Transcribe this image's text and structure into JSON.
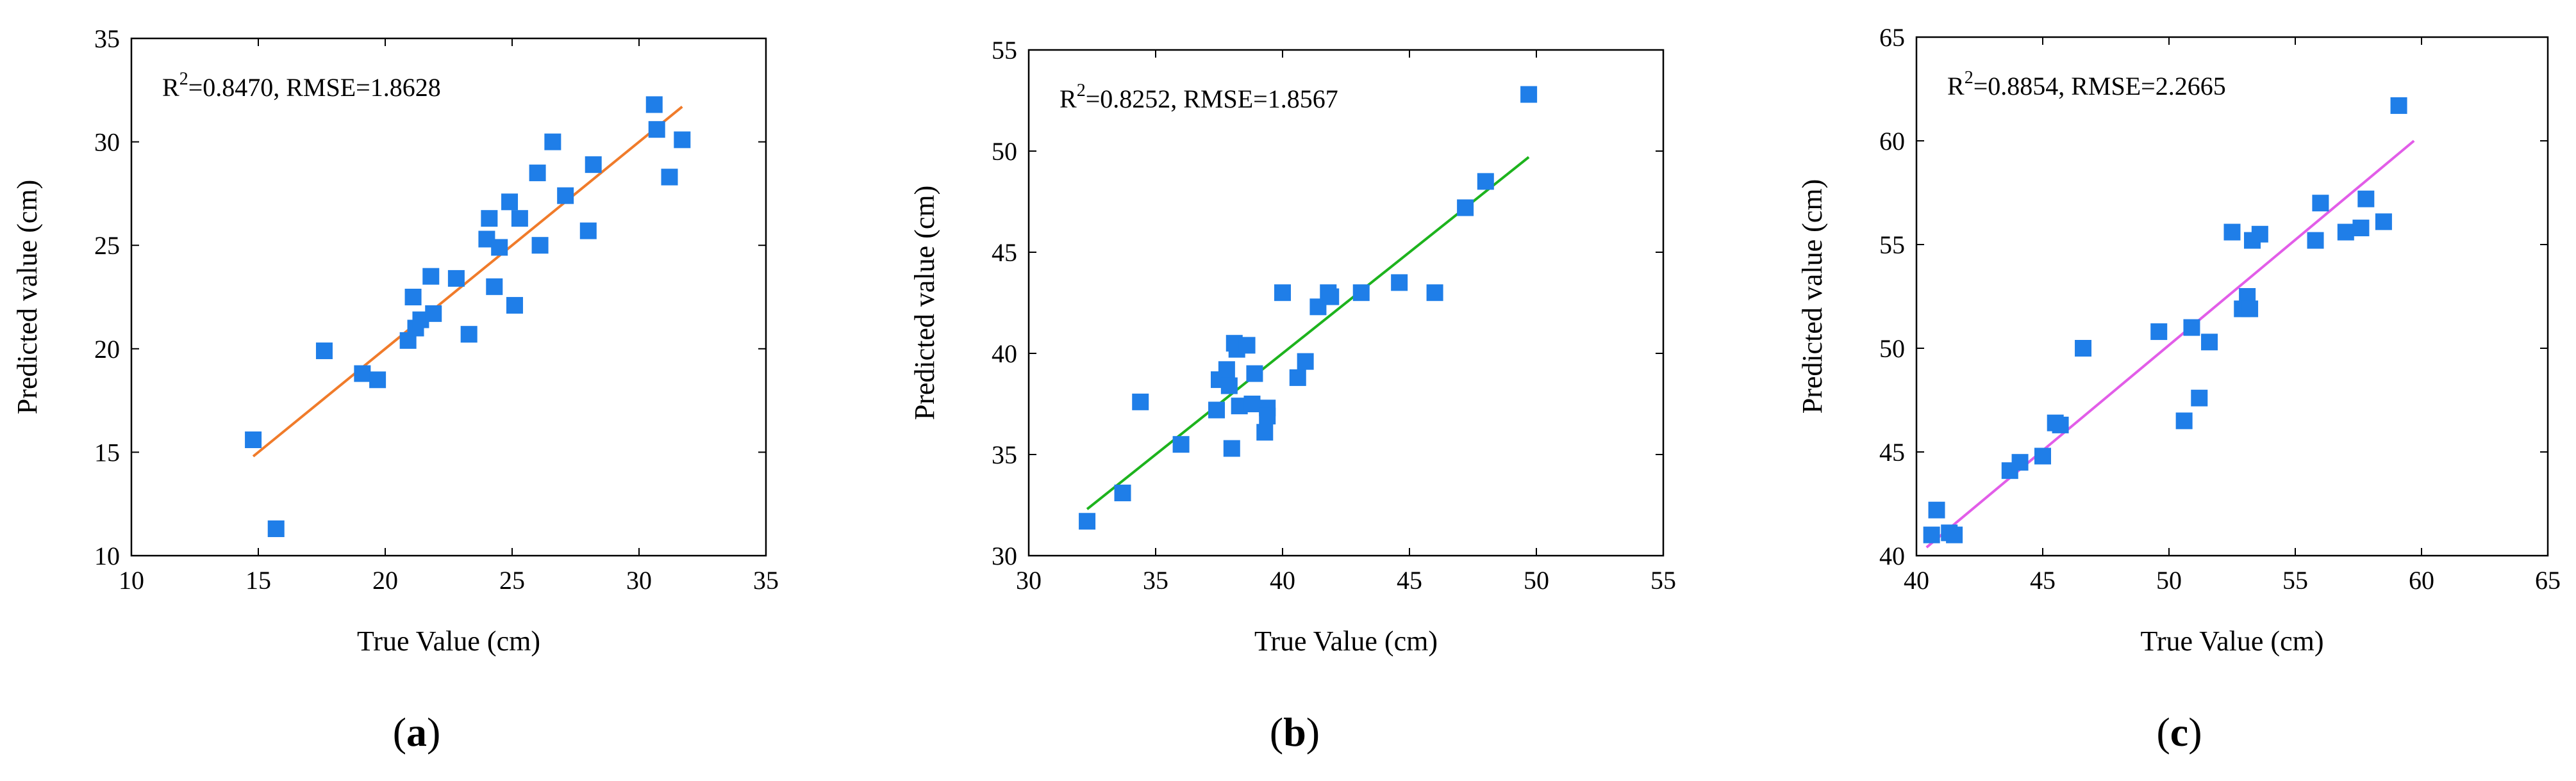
{
  "chart_data": [
    {
      "type": "scatter",
      "panel_label": {
        "open": "(",
        "letter": "a",
        "close": ")"
      },
      "xlabel": "True Value (cm)",
      "ylabel": "Predicted value (cm)",
      "xlim": [
        10,
        35
      ],
      "ylim": [
        10,
        35
      ],
      "xticks": [
        "10",
        "15",
        "20",
        "25",
        "30",
        "35"
      ],
      "yticks": [
        "10",
        "15",
        "20",
        "25",
        "30",
        "35"
      ],
      "xtick_values": [
        10,
        15,
        20,
        25,
        30,
        35
      ],
      "ytick_values": [
        10,
        15,
        20,
        25,
        30,
        35
      ],
      "annotation": {
        "r_prefix": "R",
        "r_sup": "2",
        "text": "=0.8470, RMSE=1.8628"
      },
      "marker_color": "#1f7ee8",
      "fit_color": "#f07b2a",
      "fit_line": {
        "x": [
          14.8,
          31.7
        ],
        "y": [
          14.8,
          31.7
        ]
      },
      "points": [
        {
          "x": 14.8,
          "y": 15.6
        },
        {
          "x": 15.7,
          "y": 11.3
        },
        {
          "x": 17.6,
          "y": 19.9
        },
        {
          "x": 19.1,
          "y": 18.8
        },
        {
          "x": 19.7,
          "y": 18.5
        },
        {
          "x": 20.9,
          "y": 20.4
        },
        {
          "x": 21.1,
          "y": 22.5
        },
        {
          "x": 21.2,
          "y": 21.0
        },
        {
          "x": 21.4,
          "y": 21.4
        },
        {
          "x": 21.8,
          "y": 23.5
        },
        {
          "x": 21.9,
          "y": 21.7
        },
        {
          "x": 22.8,
          "y": 23.4
        },
        {
          "x": 23.3,
          "y": 20.7
        },
        {
          "x": 24.0,
          "y": 25.3
        },
        {
          "x": 24.1,
          "y": 26.3
        },
        {
          "x": 24.3,
          "y": 23.0
        },
        {
          "x": 24.5,
          "y": 24.9
        },
        {
          "x": 24.9,
          "y": 27.1
        },
        {
          "x": 25.1,
          "y": 22.1
        },
        {
          "x": 25.3,
          "y": 26.3
        },
        {
          "x": 26.0,
          "y": 28.5
        },
        {
          "x": 26.1,
          "y": 25.0
        },
        {
          "x": 26.6,
          "y": 30.0
        },
        {
          "x": 27.1,
          "y": 27.4
        },
        {
          "x": 28.0,
          "y": 25.7
        },
        {
          "x": 28.2,
          "y": 28.9
        },
        {
          "x": 30.6,
          "y": 31.8
        },
        {
          "x": 30.7,
          "y": 30.6
        },
        {
          "x": 31.2,
          "y": 28.3
        },
        {
          "x": 31.7,
          "y": 30.1
        }
      ]
    },
    {
      "type": "scatter",
      "panel_label": {
        "open": "(",
        "letter": "b",
        "close": ")"
      },
      "xlabel": "True Value (cm)",
      "ylabel": "Predicted value (cm)",
      "xlim": [
        30,
        55
      ],
      "ylim": [
        30,
        55
      ],
      "xticks": [
        "30",
        "35",
        "40",
        "45",
        "50",
        "55"
      ],
      "yticks": [
        "30",
        "35",
        "40",
        "45",
        "50",
        "55"
      ],
      "xtick_values": [
        30,
        35,
        40,
        45,
        50,
        55
      ],
      "ytick_values": [
        30,
        35,
        40,
        45,
        50,
        55
      ],
      "annotation": {
        "r_prefix": "R",
        "r_sup": "2",
        "text": "=0.8252, RMSE=1.8567"
      },
      "marker_color": "#1f7ee8",
      "fit_color": "#1db31d",
      "fit_line": {
        "x": [
          32.3,
          49.7
        ],
        "y": [
          32.3,
          49.7
        ]
      },
      "points": [
        {
          "x": 32.3,
          "y": 31.7
        },
        {
          "x": 33.7,
          "y": 33.1
        },
        {
          "x": 34.4,
          "y": 37.6
        },
        {
          "x": 36.0,
          "y": 35.5
        },
        {
          "x": 37.4,
          "y": 37.2
        },
        {
          "x": 37.5,
          "y": 38.7
        },
        {
          "x": 37.8,
          "y": 39.2
        },
        {
          "x": 37.9,
          "y": 38.4
        },
        {
          "x": 38.0,
          "y": 35.3
        },
        {
          "x": 38.1,
          "y": 40.5
        },
        {
          "x": 38.2,
          "y": 40.2
        },
        {
          "x": 38.3,
          "y": 37.4
        },
        {
          "x": 38.6,
          "y": 40.4
        },
        {
          "x": 38.8,
          "y": 37.5
        },
        {
          "x": 38.9,
          "y": 39.0
        },
        {
          "x": 39.3,
          "y": 36.1
        },
        {
          "x": 39.4,
          "y": 37.3
        },
        {
          "x": 39.4,
          "y": 36.9
        },
        {
          "x": 40.0,
          "y": 43.0
        },
        {
          "x": 40.6,
          "y": 38.8
        },
        {
          "x": 40.9,
          "y": 39.6
        },
        {
          "x": 41.4,
          "y": 42.3
        },
        {
          "x": 41.8,
          "y": 43.0
        },
        {
          "x": 41.9,
          "y": 42.8
        },
        {
          "x": 43.1,
          "y": 43.0
        },
        {
          "x": 44.6,
          "y": 43.5
        },
        {
          "x": 46.0,
          "y": 43.0
        },
        {
          "x": 47.2,
          "y": 47.2
        },
        {
          "x": 48.0,
          "y": 48.5
        },
        {
          "x": 49.7,
          "y": 52.8
        }
      ]
    },
    {
      "type": "scatter",
      "panel_label": {
        "open": "(",
        "letter": "c",
        "close": ")"
      },
      "xlabel": "True Value (cm)",
      "ylabel": "Predicted value (cm)",
      "xlim": [
        40,
        65
      ],
      "ylim": [
        40,
        65
      ],
      "xticks": [
        "40",
        "45",
        "50",
        "55",
        "60",
        "65"
      ],
      "yticks": [
        "40",
        "45",
        "50",
        "55",
        "60",
        "65"
      ],
      "xtick_values": [
        40,
        45,
        50,
        55,
        60,
        65
      ],
      "ytick_values": [
        40,
        45,
        50,
        55,
        60,
        65
      ],
      "annotation": {
        "r_prefix": "R",
        "r_sup": "2",
        "text": "=0.8854, RMSE=2.2665"
      },
      "marker_color": "#1f7ee8",
      "fit_color": "#e25de8",
      "fit_line": {
        "x": [
          40.4,
          59.7
        ],
        "y": [
          40.4,
          60.0
        ]
      },
      "points": [
        {
          "x": 40.6,
          "y": 41.0
        },
        {
          "x": 40.8,
          "y": 42.2
        },
        {
          "x": 41.3,
          "y": 41.1
        },
        {
          "x": 41.5,
          "y": 41.0
        },
        {
          "x": 43.7,
          "y": 44.1
        },
        {
          "x": 44.1,
          "y": 44.5
        },
        {
          "x": 45.0,
          "y": 44.8
        },
        {
          "x": 45.5,
          "y": 46.4
        },
        {
          "x": 45.7,
          "y": 46.3
        },
        {
          "x": 46.6,
          "y": 50.0
        },
        {
          "x": 49.6,
          "y": 50.8
        },
        {
          "x": 50.6,
          "y": 46.5
        },
        {
          "x": 50.9,
          "y": 51.0
        },
        {
          "x": 51.2,
          "y": 47.6
        },
        {
          "x": 51.6,
          "y": 50.3
        },
        {
          "x": 52.5,
          "y": 55.6
        },
        {
          "x": 52.9,
          "y": 51.9
        },
        {
          "x": 53.1,
          "y": 52.5
        },
        {
          "x": 53.2,
          "y": 51.9
        },
        {
          "x": 53.3,
          "y": 55.2
        },
        {
          "x": 53.6,
          "y": 55.5
        },
        {
          "x": 55.8,
          "y": 55.2
        },
        {
          "x": 56.0,
          "y": 57.0
        },
        {
          "x": 57.0,
          "y": 55.6
        },
        {
          "x": 57.6,
          "y": 55.8
        },
        {
          "x": 57.8,
          "y": 57.2
        },
        {
          "x": 58.5,
          "y": 56.1
        },
        {
          "x": 59.1,
          "y": 61.7
        }
      ]
    }
  ]
}
